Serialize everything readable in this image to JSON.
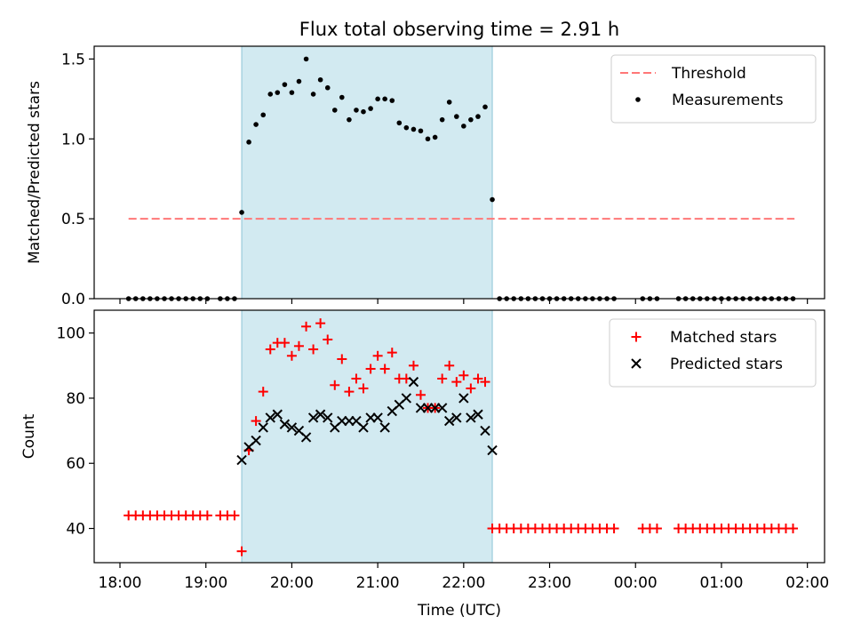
{
  "chart_data": [
    {
      "type": "scatter",
      "title": "Flux total observing time = 2.91 h",
      "ylabel": "Matched/Predicted stars",
      "xlabel": "",
      "xlim": [
        -0.3,
        8.2
      ],
      "ylim": [
        0,
        1.58
      ],
      "yticks": [
        "0.0",
        "0.5",
        "1.0",
        "1.5"
      ],
      "legend": "upper-right",
      "span": {
        "x": [
          1.417,
          4.333
        ],
        "color": "#add8e6"
      },
      "threshold": {
        "name": "Threshold",
        "value": 0.5,
        "x": [
          0.1,
          7.85
        ],
        "color": "#ff7777"
      },
      "series": [
        {
          "name": "Measurements",
          "marker": "dot",
          "color": "#000000",
          "x": [
            0.1,
            0.183,
            0.267,
            0.35,
            0.433,
            0.517,
            0.6,
            0.683,
            0.767,
            0.85,
            0.933,
            1.017,
            1.167,
            1.25,
            1.333,
            1.417,
            1.5,
            1.583,
            1.667,
            1.75,
            1.833,
            1.917,
            2.0,
            2.083,
            2.167,
            2.25,
            2.333,
            2.417,
            2.5,
            2.583,
            2.667,
            2.75,
            2.833,
            2.917,
            3.0,
            3.083,
            3.167,
            3.25,
            3.333,
            3.417,
            3.5,
            3.583,
            3.667,
            3.75,
            3.833,
            3.917,
            4.0,
            4.083,
            4.167,
            4.25,
            4.333,
            4.417,
            4.5,
            4.583,
            4.667,
            4.75,
            4.833,
            4.917,
            5.0,
            5.083,
            5.167,
            5.25,
            5.333,
            5.417,
            5.5,
            5.583,
            5.667,
            5.75,
            6.083,
            6.167,
            6.25,
            6.5,
            6.583,
            6.667,
            6.75,
            6.833,
            6.917,
            7.0,
            7.083,
            7.167,
            7.25,
            7.333,
            7.417,
            7.5,
            7.583,
            7.667,
            7.75,
            7.833
          ],
          "y": [
            0,
            0,
            0,
            0,
            0,
            0,
            0,
            0,
            0,
            0,
            0,
            0,
            0,
            0,
            0,
            0.54,
            0.98,
            1.09,
            1.15,
            1.28,
            1.29,
            1.34,
            1.29,
            1.36,
            1.5,
            1.28,
            1.37,
            1.32,
            1.18,
            1.26,
            1.12,
            1.18,
            1.17,
            1.19,
            1.25,
            1.25,
            1.24,
            1.1,
            1.07,
            1.06,
            1.05,
            1.0,
            1.01,
            1.12,
            1.23,
            1.14,
            1.08,
            1.12,
            1.14,
            1.2,
            0.62,
            0,
            0,
            0,
            0,
            0,
            0,
            0,
            0,
            0,
            0,
            0,
            0,
            0,
            0,
            0,
            0,
            0,
            0,
            0,
            0,
            0,
            0,
            0,
            0,
            0,
            0,
            0,
            0,
            0,
            0,
            0,
            0,
            0,
            0,
            0,
            0,
            0
          ]
        }
      ]
    },
    {
      "type": "scatter",
      "title": "",
      "ylabel": "Count",
      "xlabel": "Time (UTC)",
      "xlim": [
        -0.3,
        8.2
      ],
      "ylim": [
        29.5,
        107
      ],
      "yticks": [
        "40",
        "60",
        "80",
        "100"
      ],
      "xticks": [
        "18:00",
        "19:00",
        "20:00",
        "21:00",
        "22:00",
        "23:00",
        "00:00",
        "01:00",
        "02:00"
      ],
      "legend": "upper-right",
      "span": {
        "x": [
          1.417,
          4.333
        ],
        "color": "#add8e6"
      },
      "series": [
        {
          "name": "Matched stars",
          "marker": "plus",
          "color": "#ff0000",
          "x": [
            0.1,
            0.183,
            0.267,
            0.35,
            0.433,
            0.517,
            0.6,
            0.683,
            0.767,
            0.85,
            0.933,
            1.017,
            1.167,
            1.25,
            1.333,
            1.417,
            1.5,
            1.583,
            1.667,
            1.75,
            1.833,
            1.917,
            2.0,
            2.083,
            2.167,
            2.25,
            2.333,
            2.417,
            2.5,
            2.583,
            2.667,
            2.75,
            2.833,
            2.917,
            3.0,
            3.083,
            3.167,
            3.25,
            3.333,
            3.417,
            3.5,
            3.583,
            3.667,
            3.75,
            3.833,
            3.917,
            4.0,
            4.083,
            4.167,
            4.25,
            4.333,
            4.417,
            4.5,
            4.583,
            4.667,
            4.75,
            4.833,
            4.917,
            5.0,
            5.083,
            5.167,
            5.25,
            5.333,
            5.417,
            5.5,
            5.583,
            5.667,
            5.75,
            6.083,
            6.167,
            6.25,
            6.5,
            6.583,
            6.667,
            6.75,
            6.833,
            6.917,
            7.0,
            7.083,
            7.167,
            7.25,
            7.333,
            7.417,
            7.5,
            7.583,
            7.667,
            7.75,
            7.833
          ],
          "y": [
            44,
            44,
            44,
            44,
            44,
            44,
            44,
            44,
            44,
            44,
            44,
            44,
            44,
            44,
            44,
            33,
            64,
            73,
            82,
            95,
            97,
            97,
            93,
            96,
            102,
            95,
            103,
            98,
            84,
            92,
            82,
            86,
            83,
            89,
            93,
            89,
            94,
            86,
            86,
            90,
            81,
            77,
            77,
            86,
            90,
            85,
            87,
            83,
            86,
            85,
            40,
            40,
            40,
            40,
            40,
            40,
            40,
            40,
            40,
            40,
            40,
            40,
            40,
            40,
            40,
            40,
            40,
            40,
            40,
            40,
            40,
            40,
            40,
            40,
            40,
            40,
            40,
            40,
            40,
            40,
            40,
            40,
            40,
            40,
            40,
            40,
            40,
            40
          ]
        },
        {
          "name": "Predicted stars",
          "marker": "x",
          "color": "#000000",
          "x": [
            1.417,
            1.5,
            1.583,
            1.667,
            1.75,
            1.833,
            1.917,
            2.0,
            2.083,
            2.167,
            2.25,
            2.333,
            2.417,
            2.5,
            2.583,
            2.667,
            2.75,
            2.833,
            2.917,
            3.0,
            3.083,
            3.167,
            3.25,
            3.333,
            3.417,
            3.5,
            3.583,
            3.667,
            3.75,
            3.833,
            3.917,
            4.0,
            4.083,
            4.167,
            4.25,
            4.333
          ],
          "y": [
            61,
            65,
            67,
            71,
            74,
            75,
            72,
            71,
            70,
            68,
            74,
            75,
            74,
            71,
            73,
            73,
            73,
            71,
            74,
            74,
            71,
            76,
            78,
            80,
            85,
            77,
            77,
            77,
            77,
            73,
            74,
            80,
            74,
            75,
            70,
            64
          ]
        }
      ]
    }
  ]
}
